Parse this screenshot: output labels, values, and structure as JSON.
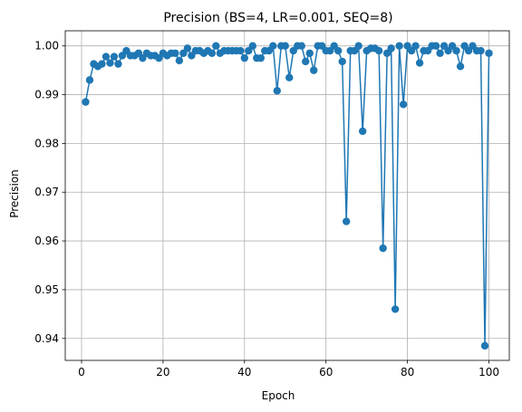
{
  "chart_data": {
    "type": "line",
    "title": "Precision (BS=4, LR=0.001, SEQ=8)",
    "xlabel": "Epoch",
    "ylabel": "Precision",
    "xlim": [
      -4,
      105
    ],
    "ylim": [
      0.9355,
      1.0031
    ],
    "xticks": [
      0,
      20,
      40,
      60,
      80,
      100
    ],
    "xtick_labels": [
      "0",
      "20",
      "40",
      "60",
      "80",
      "100"
    ],
    "yticks": [
      0.94,
      0.95,
      0.96,
      0.97,
      0.98,
      0.99,
      1.0
    ],
    "ytick_labels": [
      "0.94",
      "0.95",
      "0.96",
      "0.97",
      "0.98",
      "0.99",
      "1.00"
    ],
    "grid": true,
    "marker": "circle",
    "color": "#1f77b4",
    "series": [
      {
        "x": [
          1,
          2,
          3,
          4,
          5,
          6,
          7,
          8,
          9,
          10,
          11,
          12,
          13,
          14,
          15,
          16,
          17,
          18,
          19,
          20,
          21,
          22,
          23,
          24,
          25,
          26,
          27,
          28,
          29,
          30,
          31,
          32,
          33,
          34,
          35,
          36,
          37,
          38,
          39,
          40,
          41,
          42,
          43,
          44,
          45,
          46,
          47,
          48,
          49,
          50,
          51,
          52,
          53,
          54,
          55,
          56,
          57,
          58,
          59,
          60,
          61,
          62,
          63,
          64,
          65,
          66,
          67,
          68,
          69,
          70,
          71,
          72,
          73,
          74,
          75,
          76,
          77,
          78,
          79,
          80,
          81,
          82,
          83,
          84,
          85,
          86,
          87,
          88,
          89,
          90,
          91,
          92,
          93,
          94,
          95,
          96,
          97,
          98,
          99,
          100
        ],
        "values": [
          0.9885,
          0.993,
          0.9963,
          0.9958,
          0.9963,
          0.9978,
          0.9965,
          0.9978,
          0.9963,
          0.998,
          0.999,
          0.998,
          0.998,
          0.9985,
          0.9975,
          0.9985,
          0.998,
          0.998,
          0.9975,
          0.9985,
          0.998,
          0.9985,
          0.9985,
          0.997,
          0.9985,
          0.9995,
          0.998,
          0.999,
          0.999,
          0.9985,
          0.999,
          0.9985,
          1.0,
          0.9985,
          0.999,
          0.999,
          0.999,
          0.999,
          0.999,
          0.9975,
          0.999,
          1.0,
          0.9975,
          0.9975,
          0.999,
          0.999,
          1.0,
          0.9908,
          1.0,
          1.0,
          0.9935,
          0.999,
          1.0,
          1.0,
          0.9968,
          0.9985,
          0.995,
          1.0,
          1.0,
          0.999,
          0.999,
          1.0,
          0.999,
          0.9968,
          0.964,
          0.999,
          0.999,
          1.0,
          0.9825,
          0.999,
          0.9995,
          0.9995,
          0.999,
          0.9585,
          0.9985,
          0.9995,
          0.946,
          1.0,
          0.988,
          1.0,
          0.999,
          1.0,
          0.9965,
          0.999,
          0.999,
          1.0,
          1.0,
          0.9985,
          1.0,
          0.999,
          1.0,
          0.999,
          0.9958,
          1.0,
          0.999,
          1.0,
          0.999,
          0.999,
          0.9385,
          0.9985
        ]
      }
    ]
  }
}
